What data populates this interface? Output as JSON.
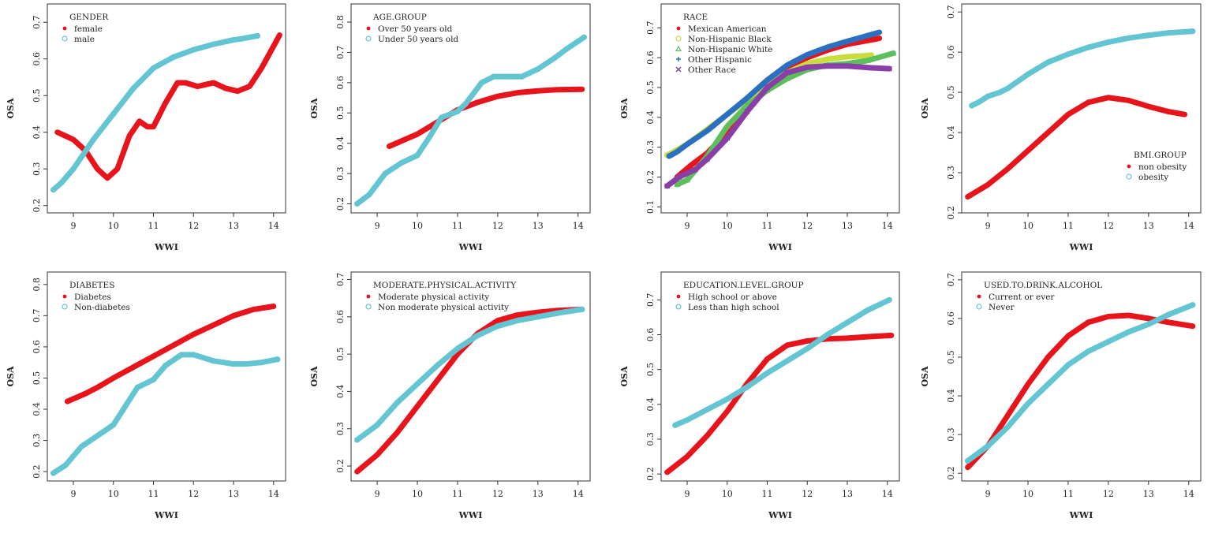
{
  "chart_data": [
    {
      "type": "line",
      "title": "GENDER",
      "xlabel": "WWI",
      "ylabel": "OSA",
      "xlim": [
        8.35,
        14.3
      ],
      "ylim": [
        0.18,
        0.75
      ],
      "xticks": [
        9,
        10,
        11,
        12,
        13,
        14
      ],
      "yticks": [
        0.2,
        0.3,
        0.4,
        0.5,
        0.6,
        0.7
      ],
      "legend": "top-left",
      "series": [
        {
          "name": "female",
          "color": "#e8141c",
          "marker": "dot",
          "x": [
            8.6,
            8.8,
            9.0,
            9.3,
            9.6,
            9.85,
            10.1,
            10.4,
            10.65,
            10.85,
            11.0,
            11.3,
            11.6,
            11.8,
            12.1,
            12.5,
            12.8,
            13.1,
            13.4,
            13.7,
            13.9,
            14.15
          ],
          "y": [
            0.4,
            0.39,
            0.38,
            0.35,
            0.3,
            0.275,
            0.3,
            0.39,
            0.43,
            0.415,
            0.415,
            0.48,
            0.535,
            0.535,
            0.525,
            0.535,
            0.52,
            0.512,
            0.525,
            0.575,
            0.615,
            0.665
          ]
        },
        {
          "name": "male",
          "color": "#63c5d2",
          "marker": "circle",
          "x": [
            8.5,
            8.7,
            9.0,
            9.5,
            10,
            10.5,
            11,
            11.5,
            12,
            12.5,
            13,
            13.2,
            13.6
          ],
          "y": [
            0.243,
            0.262,
            0.3,
            0.38,
            0.45,
            0.52,
            0.575,
            0.605,
            0.625,
            0.64,
            0.652,
            0.655,
            0.663
          ]
        }
      ]
    },
    {
      "type": "line",
      "title": "AGE.GROUP",
      "xlabel": "WWI",
      "ylabel": "OSA",
      "xlim": [
        8.35,
        14.3
      ],
      "ylim": [
        0.17,
        0.86
      ],
      "xticks": [
        9,
        10,
        11,
        12,
        13,
        14
      ],
      "yticks": [
        0.2,
        0.3,
        0.4,
        0.5,
        0.6,
        0.7,
        0.8
      ],
      "legend": "top-left",
      "series": [
        {
          "name": "Over 50 years old",
          "color": "#e8141c",
          "marker": "dot",
          "x": [
            9.3,
            10,
            10.5,
            11,
            11.5,
            12,
            12.5,
            13,
            13.5,
            14.1
          ],
          "y": [
            0.39,
            0.43,
            0.47,
            0.51,
            0.535,
            0.555,
            0.567,
            0.573,
            0.577,
            0.578
          ]
        },
        {
          "name": "Under 50 years old",
          "color": "#63c5d2",
          "marker": "circle",
          "x": [
            8.5,
            8.8,
            9.2,
            9.6,
            10,
            10.3,
            10.6,
            11,
            11.2,
            11.6,
            11.9,
            12.3,
            12.6,
            13,
            13.4,
            13.7,
            14.15
          ],
          "y": [
            0.2,
            0.23,
            0.3,
            0.335,
            0.36,
            0.42,
            0.485,
            0.505,
            0.53,
            0.6,
            0.62,
            0.62,
            0.62,
            0.645,
            0.68,
            0.71,
            0.75
          ]
        }
      ]
    },
    {
      "type": "line",
      "title": "RACE",
      "xlabel": "WWI",
      "ylabel": "OSA",
      "xlim": [
        8.35,
        14.3
      ],
      "ylim": [
        0.08,
        0.78
      ],
      "xticks": [
        9,
        10,
        11,
        12,
        13,
        14
      ],
      "yticks": [
        0.1,
        0.2,
        0.3,
        0.4,
        0.5,
        0.6,
        0.7
      ],
      "legend": "top-left",
      "series": [
        {
          "name": "Mexican American",
          "color": "#e8141c",
          "marker": "dot",
          "x": [
            8.75,
            9.1,
            9.5,
            10,
            10.5,
            11,
            11.5,
            12,
            12.5,
            13,
            13.7,
            13.8
          ],
          "y": [
            0.2,
            0.24,
            0.28,
            0.35,
            0.43,
            0.51,
            0.56,
            0.6,
            0.625,
            0.645,
            0.662,
            0.665
          ]
        },
        {
          "name": "Non-Hispanic Black",
          "color": "#c8dc3c",
          "marker": "circle",
          "x": [
            8.5,
            9,
            9.5,
            10,
            10.5,
            11,
            11.5,
            12,
            12.5,
            13,
            13.6
          ],
          "y": [
            0.273,
            0.31,
            0.36,
            0.41,
            0.46,
            0.51,
            0.55,
            0.58,
            0.595,
            0.603,
            0.608
          ]
        },
        {
          "name": "Non-Hispanic White",
          "color": "#5cbf5c",
          "marker": "triangle",
          "x": [
            8.75,
            9,
            9.5,
            10,
            10.5,
            11,
            11.5,
            12,
            12.5,
            13,
            13.5,
            14.15
          ],
          "y": [
            0.175,
            0.19,
            0.27,
            0.37,
            0.44,
            0.49,
            0.53,
            0.56,
            0.575,
            0.58,
            0.59,
            0.615
          ]
        },
        {
          "name": "Other Hispanic",
          "color": "#2b6fc0",
          "marker": "plus",
          "x": [
            8.55,
            8.75,
            9,
            9.5,
            10,
            10.5,
            11,
            11.5,
            12,
            12.5,
            13,
            13.8
          ],
          "y": [
            0.27,
            0.285,
            0.31,
            0.355,
            0.41,
            0.465,
            0.525,
            0.575,
            0.61,
            0.635,
            0.655,
            0.685
          ]
        },
        {
          "name": "Other Race",
          "color": "#8a3fa8",
          "marker": "cross",
          "x": [
            8.5,
            8.8,
            9.2,
            9.5,
            10,
            10.5,
            11,
            11.5,
            12,
            12.5,
            13,
            13.6,
            14.05
          ],
          "y": [
            0.17,
            0.2,
            0.225,
            0.26,
            0.33,
            0.42,
            0.5,
            0.55,
            0.568,
            0.572,
            0.572,
            0.566,
            0.563
          ]
        }
      ]
    },
    {
      "type": "line",
      "title": "BMI.GROUP",
      "xlabel": "WWI",
      "ylabel": "OSA",
      "xlim": [
        8.35,
        14.3
      ],
      "ylim": [
        0.2,
        0.72
      ],
      "xticks": [
        9,
        10,
        11,
        12,
        13,
        14
      ],
      "yticks": [
        0.2,
        0.3,
        0.4,
        0.5,
        0.6,
        0.7
      ],
      "legend": "bottom-right",
      "series": [
        {
          "name": "non obesity",
          "color": "#e8141c",
          "marker": "dot",
          "x": [
            8.5,
            9,
            9.5,
            10,
            10.5,
            11,
            11.5,
            12,
            12.5,
            13,
            13.5,
            13.9
          ],
          "y": [
            0.24,
            0.27,
            0.31,
            0.355,
            0.4,
            0.445,
            0.475,
            0.487,
            0.48,
            0.465,
            0.452,
            0.445
          ]
        },
        {
          "name": "obesity",
          "color": "#63c5d2",
          "marker": "circle",
          "x": [
            8.6,
            8.8,
            9.0,
            9.3,
            9.5,
            10,
            10.5,
            11,
            11.5,
            12,
            12.5,
            13,
            13.5,
            14.1
          ],
          "y": [
            0.467,
            0.477,
            0.49,
            0.5,
            0.51,
            0.545,
            0.575,
            0.595,
            0.612,
            0.625,
            0.635,
            0.642,
            0.648,
            0.652
          ]
        }
      ]
    },
    {
      "type": "line",
      "title": "DIABETES",
      "xlabel": "WWI",
      "ylabel": "OSA",
      "xlim": [
        8.35,
        14.3
      ],
      "ylim": [
        0.17,
        0.84
      ],
      "xticks": [
        9,
        10,
        11,
        12,
        13,
        14
      ],
      "yticks": [
        0.2,
        0.3,
        0.4,
        0.5,
        0.6,
        0.7,
        0.8
      ],
      "legend": "top-left",
      "series": [
        {
          "name": "Diabetes",
          "color": "#e8141c",
          "marker": "dot",
          "x": [
            8.85,
            9.3,
            9.6,
            10,
            10.5,
            11,
            11.5,
            12,
            12.5,
            13,
            13.5,
            14
          ],
          "y": [
            0.425,
            0.45,
            0.47,
            0.5,
            0.535,
            0.57,
            0.605,
            0.64,
            0.67,
            0.7,
            0.72,
            0.73
          ]
        },
        {
          "name": "Non-diabetes",
          "color": "#63c5d2",
          "marker": "circle",
          "x": [
            8.5,
            8.8,
            9.2,
            9.6,
            10,
            10.3,
            10.6,
            11,
            11.3,
            11.7,
            12,
            12.5,
            13,
            13.3,
            13.7,
            14.1
          ],
          "y": [
            0.195,
            0.22,
            0.28,
            0.315,
            0.35,
            0.41,
            0.47,
            0.495,
            0.54,
            0.575,
            0.575,
            0.555,
            0.545,
            0.545,
            0.55,
            0.56
          ]
        }
      ]
    },
    {
      "type": "line",
      "title": "MODERATE.PHYSICAL.ACTIVITY",
      "xlabel": "WWI",
      "ylabel": "OSA",
      "xlim": [
        8.35,
        14.3
      ],
      "ylim": [
        0.16,
        0.72
      ],
      "xticks": [
        9,
        10,
        11,
        12,
        13,
        14
      ],
      "yticks": [
        0.2,
        0.3,
        0.4,
        0.5,
        0.6,
        0.7
      ],
      "legend": "top-left",
      "series": [
        {
          "name": "Moderate physical activity",
          "color": "#e8141c",
          "marker": "dot",
          "x": [
            8.5,
            9,
            9.5,
            10,
            10.5,
            11,
            11.5,
            12,
            12.5,
            13,
            13.5,
            14.1
          ],
          "y": [
            0.185,
            0.23,
            0.29,
            0.36,
            0.43,
            0.5,
            0.555,
            0.59,
            0.605,
            0.612,
            0.617,
            0.62
          ]
        },
        {
          "name": "Non moderate physical activity",
          "color": "#63c5d2",
          "marker": "circle",
          "x": [
            8.5,
            9,
            9.5,
            10,
            10.5,
            11,
            11.5,
            12,
            12.5,
            13,
            13.5,
            14.1
          ],
          "y": [
            0.27,
            0.31,
            0.37,
            0.42,
            0.47,
            0.515,
            0.55,
            0.575,
            0.59,
            0.6,
            0.61,
            0.62
          ]
        }
      ]
    },
    {
      "type": "line",
      "title": "EDUCATION.LEVEL.GROUP",
      "xlabel": "WWI",
      "ylabel": "OSA",
      "xlim": [
        8.35,
        14.3
      ],
      "ylim": [
        0.18,
        0.78
      ],
      "xticks": [
        9,
        10,
        11,
        12,
        13,
        14
      ],
      "yticks": [
        0.2,
        0.3,
        0.4,
        0.5,
        0.6,
        0.7
      ],
      "legend": "top-left",
      "series": [
        {
          "name": "High school or above",
          "color": "#e8141c",
          "marker": "dot",
          "x": [
            8.5,
            9,
            9.5,
            10,
            10.5,
            11,
            11.5,
            12,
            12.5,
            13,
            13.5,
            14.1
          ],
          "y": [
            0.205,
            0.25,
            0.31,
            0.38,
            0.46,
            0.53,
            0.57,
            0.582,
            0.588,
            0.59,
            0.594,
            0.598
          ]
        },
        {
          "name": "Less than high school",
          "color": "#63c5d2",
          "marker": "circle",
          "x": [
            8.7,
            9,
            9.5,
            10,
            10.5,
            11,
            11.5,
            12,
            12.5,
            13,
            13.5,
            14.05
          ],
          "y": [
            0.34,
            0.355,
            0.385,
            0.415,
            0.45,
            0.49,
            0.525,
            0.56,
            0.6,
            0.635,
            0.67,
            0.7
          ]
        }
      ]
    },
    {
      "type": "line",
      "title": "USED.TO.DRINK.ALCOHOL",
      "xlabel": "WWI",
      "ylabel": "OSA",
      "xlim": [
        8.35,
        14.3
      ],
      "ylim": [
        0.18,
        0.72
      ],
      "xticks": [
        9,
        10,
        11,
        12,
        13,
        14
      ],
      "yticks": [
        0.2,
        0.3,
        0.4,
        0.5,
        0.6,
        0.7
      ],
      "legend": "top-left",
      "series": [
        {
          "name": "Current or ever",
          "color": "#e8141c",
          "marker": "dot",
          "x": [
            8.5,
            9,
            9.5,
            10,
            10.5,
            11,
            11.5,
            12,
            12.5,
            13,
            13.5,
            14.1
          ],
          "y": [
            0.215,
            0.27,
            0.35,
            0.43,
            0.5,
            0.555,
            0.59,
            0.605,
            0.608,
            0.6,
            0.59,
            0.58
          ]
        },
        {
          "name": "Never",
          "color": "#63c5d2",
          "marker": "circle",
          "x": [
            8.5,
            9,
            9.5,
            10,
            10.5,
            11,
            11.5,
            12,
            12.5,
            13,
            13.5,
            14.1
          ],
          "y": [
            0.232,
            0.27,
            0.32,
            0.38,
            0.43,
            0.48,
            0.515,
            0.54,
            0.565,
            0.585,
            0.61,
            0.635
          ]
        }
      ]
    }
  ]
}
